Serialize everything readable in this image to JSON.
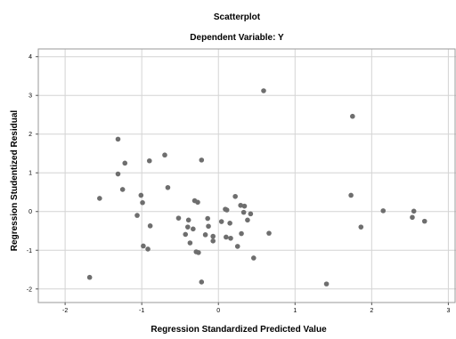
{
  "chart_data": {
    "type": "scatter",
    "title": "Scatterplot",
    "subtitle": "Dependent Variable: Y",
    "xlabel": "Regression Standardized Predicted Value",
    "ylabel": "Regression Studentized Residual",
    "xlim": [
      -2.35,
      3.1
    ],
    "ylim": [
      -2.35,
      4.2
    ],
    "x_ticks": [
      -2,
      -1,
      0,
      1,
      2,
      3
    ],
    "y_ticks": [
      -2,
      -1,
      0,
      1,
      2,
      3,
      4
    ],
    "grid": true,
    "point_color": "#6e6e6e",
    "points": [
      [
        -1.68,
        -1.7
      ],
      [
        -1.55,
        0.34
      ],
      [
        -1.31,
        1.87
      ],
      [
        -1.31,
        0.97
      ],
      [
        -1.22,
        1.25
      ],
      [
        -1.25,
        0.57
      ],
      [
        -1.06,
        -0.1
      ],
      [
        -1.01,
        0.42
      ],
      [
        -0.99,
        0.23
      ],
      [
        -0.98,
        -0.89
      ],
      [
        -0.92,
        -0.97
      ],
      [
        -0.9,
        1.31
      ],
      [
        -0.89,
        -0.37
      ],
      [
        -0.7,
        1.46
      ],
      [
        -0.66,
        0.62
      ],
      [
        -0.52,
        -0.17
      ],
      [
        -0.43,
        -0.59
      ],
      [
        -0.4,
        -0.4
      ],
      [
        -0.39,
        -0.22
      ],
      [
        -0.37,
        -0.81
      ],
      [
        -0.33,
        -0.45
      ],
      [
        -0.31,
        0.28
      ],
      [
        -0.27,
        0.24
      ],
      [
        -0.29,
        -1.04
      ],
      [
        -0.26,
        -1.06
      ],
      [
        -0.22,
        1.33
      ],
      [
        -0.22,
        -1.82
      ],
      [
        -0.17,
        -0.6
      ],
      [
        -0.13,
        -0.38
      ],
      [
        -0.14,
        -0.18
      ],
      [
        -0.07,
        -0.76
      ],
      [
        -0.07,
        -0.64
      ],
      [
        0.04,
        -0.26
      ],
      [
        0.09,
        0.06
      ],
      [
        0.11,
        0.04
      ],
      [
        0.1,
        -0.66
      ],
      [
        0.15,
        -0.3
      ],
      [
        0.16,
        -0.69
      ],
      [
        0.22,
        0.39
      ],
      [
        0.25,
        -0.9
      ],
      [
        0.29,
        0.16
      ],
      [
        0.3,
        -0.57
      ],
      [
        0.33,
        -0.02
      ],
      [
        0.34,
        0.14
      ],
      [
        0.38,
        -0.22
      ],
      [
        0.42,
        -0.06
      ],
      [
        0.46,
        -1.2
      ],
      [
        0.59,
        3.12
      ],
      [
        0.66,
        -0.56
      ],
      [
        1.41,
        -1.87
      ],
      [
        1.73,
        0.42
      ],
      [
        1.75,
        2.46
      ],
      [
        1.86,
        -0.4
      ],
      [
        2.15,
        0.02
      ],
      [
        2.53,
        -0.15
      ],
      [
        2.55,
        0.01
      ],
      [
        2.69,
        -0.25
      ]
    ]
  }
}
